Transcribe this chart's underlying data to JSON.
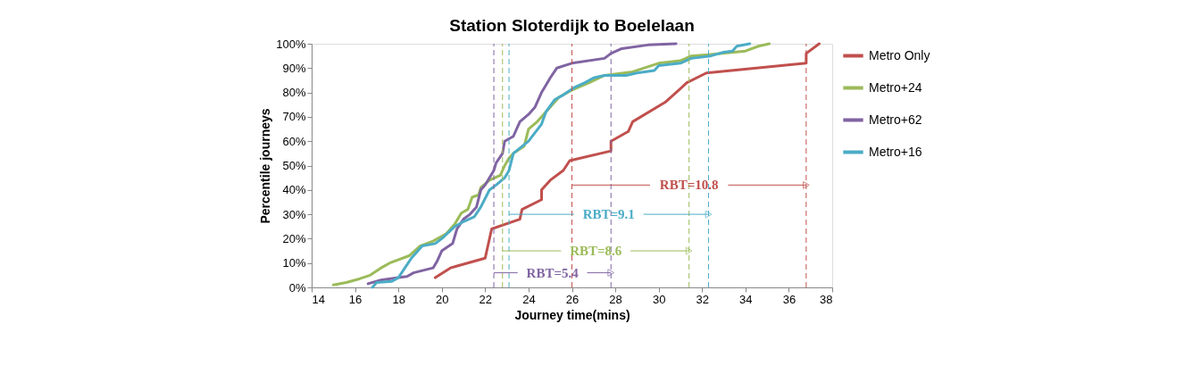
{
  "chart_data": {
    "type": "line",
    "title": "Station Sloterdijk to Boelelaan",
    "xlabel": "Journey time(mins)",
    "ylabel": "Percentile journeys",
    "xlim": [
      14,
      38
    ],
    "xticks": [
      14,
      16,
      18,
      20,
      22,
      24,
      26,
      28,
      30,
      32,
      34,
      36,
      38
    ],
    "ylim": [
      0,
      100
    ],
    "yticks": [
      {
        "value": 0,
        "label": "0%"
      },
      {
        "value": 10,
        "label": "10%"
      },
      {
        "value": 20,
        "label": "20%"
      },
      {
        "value": 30,
        "label": "30%"
      },
      {
        "value": 40,
        "label": "40%"
      },
      {
        "value": 50,
        "label": "50%"
      },
      {
        "value": 60,
        "label": "60%"
      },
      {
        "value": 70,
        "label": "70%"
      },
      {
        "value": 80,
        "label": "80%"
      },
      {
        "value": 90,
        "label": "90%"
      },
      {
        "value": 100,
        "label": "100%"
      }
    ],
    "grid": false,
    "legend": "right",
    "marker": "none",
    "line_style": "solid",
    "series": [
      {
        "name": "Metro Only",
        "color": "#c0504d",
        "x": [
          19.7,
          20.4,
          22,
          22.3,
          23.6,
          23.7,
          24.6,
          24.6,
          25,
          25.6,
          25.9,
          27.8,
          27.8,
          28.6,
          28.8,
          30.3,
          31.3,
          32.2,
          36.8,
          36.8,
          37.4
        ],
        "values": [
          4,
          8,
          12,
          24,
          28,
          32,
          36,
          40,
          44,
          48,
          52,
          56,
          60,
          64,
          68,
          76,
          84,
          88,
          92,
          96,
          100
        ]
      },
      {
        "name": "Metro+24",
        "color": "#9bbb59",
        "x": [
          15,
          15.6,
          16.2,
          16.7,
          17.2,
          17.6,
          18.5,
          19,
          19.6,
          20.2,
          20.6,
          20.9,
          21.2,
          21.4,
          21.7,
          21.8,
          22.2,
          22.7,
          22.9,
          23.1,
          23.3,
          23.8,
          24,
          24.4,
          25,
          25.4,
          26,
          26.8,
          27.5,
          28.8,
          30,
          31,
          31.5,
          32.3,
          34,
          34.6,
          35.1
        ],
        "values": [
          1,
          2,
          3.5,
          5,
          8,
          10,
          13,
          17,
          19,
          22,
          26,
          30.5,
          32,
          37,
          38,
          41,
          44,
          46,
          50,
          53,
          55,
          58,
          65,
          68,
          74,
          78,
          81,
          84,
          87,
          88.5,
          92,
          93,
          95,
          95.5,
          97,
          99,
          100
        ]
      },
      {
        "name": "Metro+62",
        "color": "#8064a2",
        "x": [
          16.6,
          17.2,
          18,
          18.4,
          18.7,
          19.6,
          19.8,
          20,
          20.5,
          20.7,
          21,
          21.3,
          21.6,
          21.8,
          22,
          22.4,
          22.5,
          22.8,
          22.9,
          23.3,
          23.6,
          24,
          24.3,
          24.6,
          24.8,
          25,
          25.3,
          26,
          27.5,
          27.8,
          28.3,
          29.5,
          30.8
        ],
        "values": [
          1.5,
          3,
          4,
          4.5,
          6,
          8,
          11,
          15,
          18,
          24,
          28,
          30,
          33,
          40,
          42,
          48,
          51,
          55,
          60,
          62,
          68,
          71,
          74,
          80,
          83,
          86,
          90,
          92,
          94,
          96,
          98,
          99.5,
          100
        ]
      },
      {
        "name": "Metro+16",
        "color": "#4bacc6",
        "x": [
          16.8,
          17,
          17.7,
          18,
          18.3,
          18.6,
          19.1,
          19.7,
          20,
          20.6,
          21,
          21.5,
          21.8,
          22.2,
          22.5,
          22.9,
          23.1,
          23.3,
          24,
          24.6,
          24.8,
          25.2,
          25.6,
          26.1,
          26.6,
          27,
          27.5,
          28.5,
          29,
          29.8,
          30,
          31,
          31.5,
          32.4,
          33,
          33.4,
          33.6,
          34.2
        ],
        "values": [
          0,
          2,
          2.5,
          4,
          8,
          12,
          17,
          18,
          20,
          25,
          27,
          29,
          33,
          40,
          42,
          45,
          48,
          55,
          60,
          67,
          72,
          77,
          79,
          82,
          84,
          86,
          87,
          87,
          88,
          89,
          91,
          92,
          94,
          95,
          96.5,
          97,
          99,
          100
        ]
      }
    ],
    "ref_lines": [
      {
        "axis": "x",
        "value": 26,
        "color": "#c0504d",
        "line_style": "dashed"
      },
      {
        "axis": "x",
        "value": 36.8,
        "color": "#c0504d",
        "line_style": "dashed"
      },
      {
        "axis": "x",
        "value": 23.1,
        "color": "#4bacc6",
        "line_style": "dashed"
      },
      {
        "axis": "x",
        "value": 32.3,
        "color": "#4bacc6",
        "line_style": "dashed"
      },
      {
        "axis": "x",
        "value": 22.8,
        "color": "#9bbb59",
        "line_style": "dashed"
      },
      {
        "axis": "x",
        "value": 31.4,
        "color": "#9bbb59",
        "line_style": "dashed"
      },
      {
        "axis": "x",
        "value": 22.4,
        "color": "#8064a2",
        "line_style": "dashed"
      },
      {
        "axis": "x",
        "value": 27.8,
        "color": "#8064a2",
        "line_style": "dashed"
      }
    ],
    "annotations": [
      {
        "text": "RBT=10.8",
        "x": 36.8,
        "y": 42
      },
      {
        "text": "RBT=9.1",
        "x": 32.3,
        "y": 30
      },
      {
        "text": "RBT=8.6",
        "x": 31.4,
        "y": 15
      },
      {
        "text": "RBT=5.4",
        "x": 27.8,
        "y": 6
      }
    ]
  }
}
